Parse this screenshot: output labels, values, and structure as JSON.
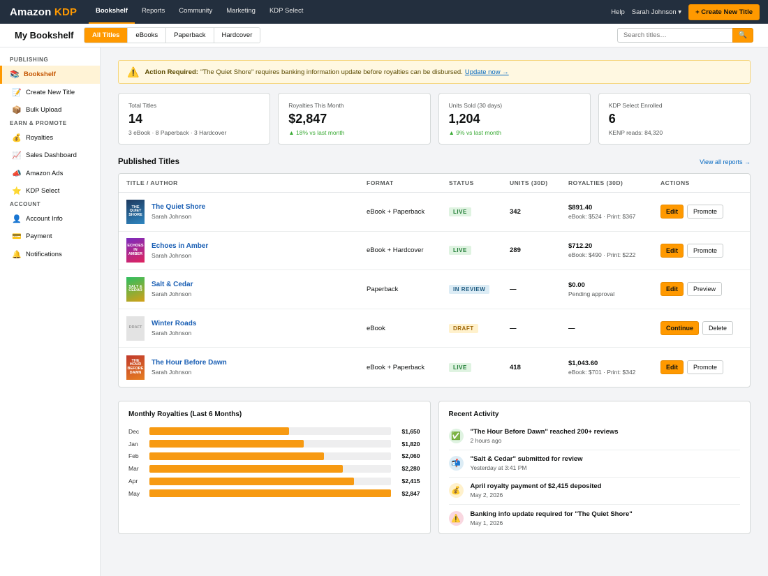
{
  "topnav": {
    "logo_main": "Amazon",
    "logo_accent": "KDP",
    "links": [
      "Bookshelf",
      "Reports",
      "Community",
      "Marketing",
      "KDP Select"
    ],
    "help": "Help",
    "user": "Sarah Johnson ▾",
    "create_btn": "+ Create New Title"
  },
  "subheader": {
    "title": "My Bookshelf",
    "tabs": [
      "All Titles",
      "eBooks",
      "Paperback",
      "Hardcover"
    ],
    "search_placeholder": "Search titles…",
    "search_icon": "🔍"
  },
  "sidebar": {
    "sections": [
      {
        "label": "PUBLISHING",
        "items": [
          {
            "icon": "📚",
            "label": "Bookshelf",
            "active": true
          },
          {
            "icon": "📝",
            "label": "Create New Title"
          },
          {
            "icon": "📦",
            "label": "Bulk Upload"
          }
        ]
      },
      {
        "label": "EARN & PROMOTE",
        "items": [
          {
            "icon": "💰",
            "label": "Royalties"
          },
          {
            "icon": "📈",
            "label": "Sales Dashboard"
          },
          {
            "icon": "📣",
            "label": "Amazon Ads"
          },
          {
            "icon": "⭐",
            "label": "KDP Select"
          }
        ]
      },
      {
        "label": "ACCOUNT",
        "items": [
          {
            "icon": "👤",
            "label": "Account Info"
          },
          {
            "icon": "💳",
            "label": "Payment"
          },
          {
            "icon": "🔔",
            "label": "Notifications"
          }
        ]
      }
    ]
  },
  "alert": {
    "icon": "⚠️",
    "strong": "Action Required:",
    "text": "\"The Quiet Shore\" requires banking information update before royalties can be disbursed.",
    "link": "Update now →"
  },
  "stats": [
    {
      "label": "Total Titles",
      "value": "14",
      "sub": "3 eBook · 8 Paperback · 3 Hardcover",
      "up": false
    },
    {
      "label": "Royalties This Month",
      "value": "$2,847",
      "sub": "▲ 18% vs last month",
      "up": true
    },
    {
      "label": "Units Sold (30 days)",
      "value": "1,204",
      "sub": "▲ 9% vs last month",
      "up": true
    },
    {
      "label": "KDP Select Enrolled",
      "value": "6",
      "sub": "KENP reads: 84,320",
      "up": false
    }
  ],
  "published": {
    "title": "Published Titles",
    "link": "View all reports →",
    "headers": [
      "TITLE / AUTHOR",
      "FORMAT",
      "STATUS",
      "UNITS (30D)",
      "ROYALTIES (30D)",
      "ACTIONS"
    ],
    "rows": [
      {
        "cover_text": "THE QUIET SHORE",
        "cover_bg": "linear-gradient(160deg,#1e3a5f,#2e86c1)",
        "cover_color": "#ffffff",
        "title": "The Quiet Shore",
        "author": "Sarah Johnson",
        "format": "eBook + Paperback",
        "status": "LIVE",
        "status_bg": "#dff3e1",
        "status_color": "#1e7b34",
        "units": "342",
        "royalty": "$891.40",
        "royalty_sub": "eBook: $524 · Print: $367",
        "actions": [
          {
            "label": "Edit",
            "primary": true
          },
          {
            "label": "Promote",
            "primary": false
          }
        ]
      },
      {
        "cover_text": "ECHOES IN AMBER",
        "cover_bg": "linear-gradient(160deg,#7b2cbf,#e0245e)",
        "cover_color": "#ffffff",
        "title": "Echoes in Amber",
        "author": "Sarah Johnson",
        "format": "eBook + Hardcover",
        "status": "LIVE",
        "status_bg": "#dff3e1",
        "status_color": "#1e7b34",
        "units": "289",
        "royalty": "$712.20",
        "royalty_sub": "eBook: $490 · Print: $222",
        "actions": [
          {
            "label": "Edit",
            "primary": true
          },
          {
            "label": "Promote",
            "primary": false
          }
        ]
      },
      {
        "cover_text": "SALT & CEDAR",
        "cover_bg": "linear-gradient(160deg,#2dbe60,#d4a017)",
        "cover_color": "#ffffff",
        "title": "Salt & Cedar",
        "author": "Sarah Johnson",
        "format": "Paperback",
        "status": "IN REVIEW",
        "status_bg": "#dcecf5",
        "status_color": "#1d5a80",
        "units": "—",
        "royalty": "$0.00",
        "royalty_sub": "Pending approval",
        "actions": [
          {
            "label": "Edit",
            "primary": true
          },
          {
            "label": "Preview",
            "primary": false
          }
        ]
      },
      {
        "cover_text": "DRAFT",
        "cover_bg": "#e3e3e3",
        "cover_color": "#9a9a9a",
        "title": "Winter Roads",
        "author": "Sarah Johnson",
        "format": "eBook",
        "status": "DRAFT",
        "status_bg": "#fff1cc",
        "status_color": "#a0680a",
        "units": "—",
        "royalty": "—",
        "royalty_sub": "",
        "actions": [
          {
            "label": "Continue",
            "primary": true
          },
          {
            "label": "Delete",
            "primary": false
          }
        ]
      },
      {
        "cover_text": "THE HOUR BEFORE DAWN",
        "cover_bg": "linear-gradient(160deg,#c0392b,#e67e22)",
        "cover_color": "#ffffff",
        "title": "The Hour Before Dawn",
        "author": "Sarah Johnson",
        "format": "eBook + Paperback",
        "status": "LIVE",
        "status_bg": "#dff3e1",
        "status_color": "#1e7b34",
        "units": "418",
        "royalty": "$1,043.60",
        "royalty_sub": "eBook: $701 · Print: $342",
        "actions": [
          {
            "label": "Edit",
            "primary": true
          },
          {
            "label": "Promote",
            "primary": false
          }
        ]
      }
    ]
  },
  "chart_data": {
    "type": "bar",
    "title": "Monthly Royalties (Last 6 Months)",
    "categories": [
      "Dec",
      "Jan",
      "Feb",
      "Mar",
      "Apr",
      "May"
    ],
    "values": [
      1650,
      1820,
      2060,
      2280,
      2415,
      2847
    ],
    "value_labels": [
      "$1,650",
      "$1,820",
      "$2,060",
      "$2,280",
      "$2,415",
      "$2,847"
    ],
    "xlim": [
      0,
      2847
    ],
    "orientation": "horizontal",
    "color": "#f79a12"
  },
  "activity": {
    "title": "Recent Activity",
    "items": [
      {
        "icon": "✅",
        "bg": "#dff3e1",
        "title": "\"The Hour Before Dawn\" reached 200+ reviews",
        "time": "2 hours ago"
      },
      {
        "icon": "📬",
        "bg": "#dcecf5",
        "title": "\"Salt & Cedar\" submitted for review",
        "time": "Yesterday at 3:41 PM"
      },
      {
        "icon": "💰",
        "bg": "#fff1cc",
        "title": "April royalty payment of $2,415 deposited",
        "time": "May 2, 2026"
      },
      {
        "icon": "⚠️",
        "bg": "#f9d7e0",
        "title": "Banking info update required for \"The Quiet Shore\"",
        "time": "May 1, 2026"
      }
    ]
  }
}
